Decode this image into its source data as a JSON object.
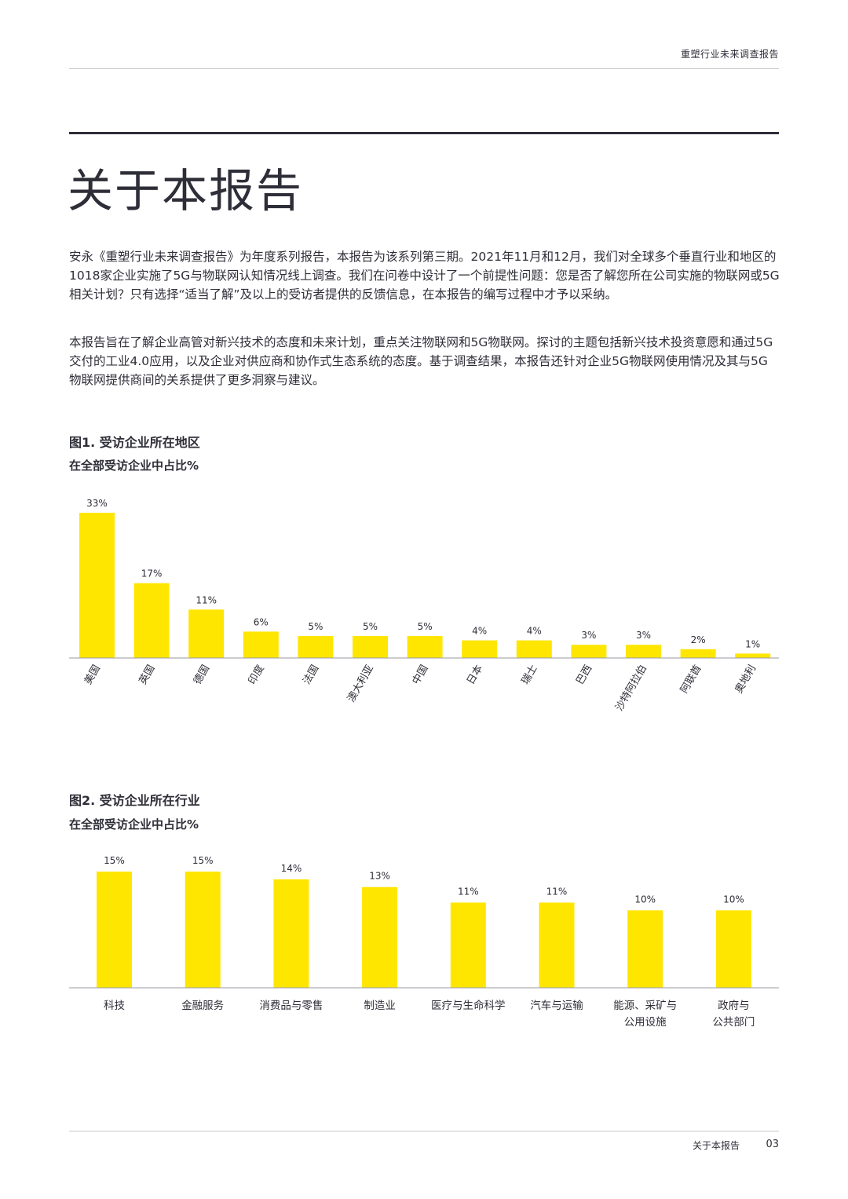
{
  "header": {
    "title": "重塑行业未来调查报告"
  },
  "page": {
    "title": "关于本报告",
    "paragraphs": [
      "安永《重塑行业未来调查报告》为年度系列报告，本报告为该系列第三期。2021年11月和12月，我们对全球多个垂直行业和地区的1018家企业实施了5G与物联网认知情况线上调查。我们在问卷中设计了一个前提性问题：您是否了解您所在公司实施的物联网或5G相关计划？只有选择“适当了解”及以上的受访者提供的反馈信息，在本报告的编写过程中才予以采纳。",
      "本报告旨在了解企业高管对新兴技术的态度和未来计划，重点关注物联网和5G物联网。探讨的主题包括新兴技术投资意愿和通过5G交付的工业4.0应用，以及企业对供应商和协作式生态系统的态度。基于调查结果，本报告还针对企业5G物联网使用情况及其与5G物联网提供商间的关系提供了更多洞察与建议。"
    ]
  },
  "chart_data": [
    {
      "type": "bar",
      "title": "图1. 受访企业所在地区",
      "subtitle": "在全部受访企业中占比%",
      "categories": [
        "美国",
        "英国",
        "德国",
        "印度",
        "法国",
        "澳大利亚",
        "中国",
        "日本",
        "瑞士",
        "巴西",
        "沙特阿拉伯",
        "阿联酋",
        "奥地利"
      ],
      "values": [
        33,
        17,
        11,
        6,
        5,
        5,
        5,
        4,
        4,
        3,
        3,
        2,
        1
      ],
      "value_labels": [
        "33%",
        "17%",
        "11%",
        "6%",
        "5%",
        "5%",
        "5%",
        "4%",
        "4%",
        "3%",
        "3%",
        "2%",
        "1%"
      ],
      "ylim": [
        0,
        33
      ],
      "color": "#ffe600",
      "grid": false
    },
    {
      "type": "bar",
      "title": "图2. 受访企业所在行业",
      "subtitle": "在全部受访企业中占比%",
      "categories": [
        "科技",
        "金融服务",
        "消费品与零售",
        "制造业",
        "医疗与生命科学",
        "汽车与运输",
        "能源、采矿与\n公用设施",
        "政府与\n公共部门"
      ],
      "values": [
        15,
        15,
        14,
        13,
        11,
        11,
        10,
        10
      ],
      "value_labels": [
        "15%",
        "15%",
        "14%",
        "13%",
        "11%",
        "11%",
        "10%",
        "10%"
      ],
      "ylim": [
        0,
        15
      ],
      "color": "#ffe600",
      "grid": false
    }
  ],
  "footer": {
    "section": "关于本报告",
    "page_number": "03"
  }
}
